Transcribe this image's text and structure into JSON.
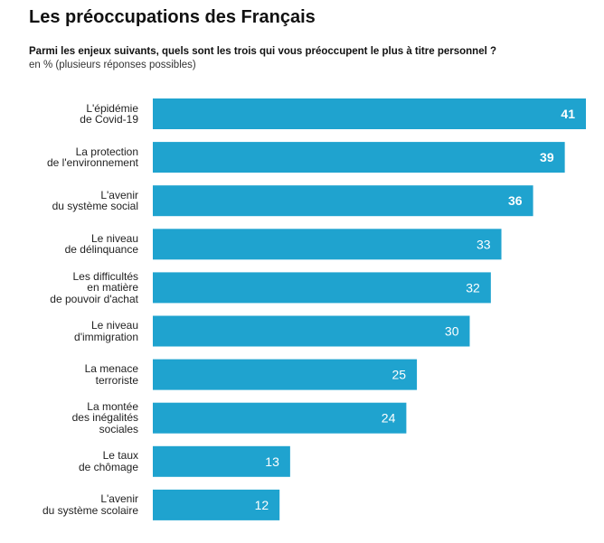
{
  "title": "Les préoccupations des Français",
  "question": "Parmi les enjeux suivants, quels sont les trois qui vous préoccupent le plus à titre personnel ?",
  "subtitle": "en % (plusieurs réponses possibles)",
  "colors": {
    "bar": "#1fa3cf",
    "value_text": "#ffffff"
  },
  "chart_data": {
    "type": "bar",
    "orientation": "horizontal",
    "categories": [
      [
        "L'épidémie",
        "de Covid-19"
      ],
      [
        "La protection",
        "de l'environnement"
      ],
      [
        "L'avenir",
        "du système social"
      ],
      [
        "Le niveau",
        "de délinquance"
      ],
      [
        "Les difficultés",
        "en matière",
        "de pouvoir d'achat"
      ],
      [
        "Le niveau",
        "d'immigration"
      ],
      [
        "La menace",
        "terroriste"
      ],
      [
        "La montée",
        "des inégalités",
        "sociales"
      ],
      [
        "Le taux",
        "de chômage"
      ],
      [
        "L'avenir",
        "du système scolaire"
      ]
    ],
    "values": [
      41,
      39,
      36,
      33,
      32,
      30,
      25,
      24,
      13,
      12
    ],
    "bold_values": [
      true,
      true,
      true,
      false,
      false,
      false,
      false,
      false,
      false,
      false
    ],
    "xlim": [
      0,
      41
    ],
    "grid": false,
    "legend": "none"
  }
}
